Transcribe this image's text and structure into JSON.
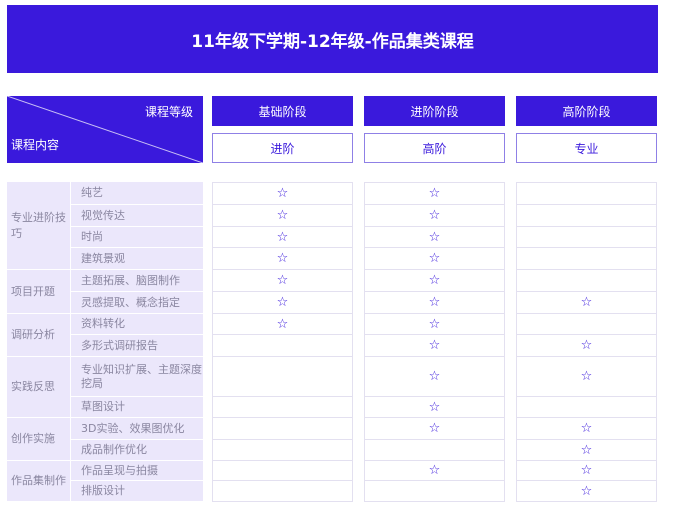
{
  "title": "11年级下学期-12年级-作品集类课程",
  "header": {
    "level_label": "课程等级",
    "content_label": "课程内容"
  },
  "levels": [
    {
      "stage": "基础阶段",
      "grade": "进阶"
    },
    {
      "stage": "进阶阶段",
      "grade": "高阶"
    },
    {
      "stage": "高阶阶段",
      "grade": "专业"
    }
  ],
  "star_icon": "star-outline-icon",
  "accent_color": "#3a19dc",
  "groups": [
    {
      "label": "专业进阶技巧",
      "rows": [
        0,
        3
      ]
    },
    {
      "label": "项目开题",
      "rows": [
        4,
        5
      ]
    },
    {
      "label": "调研分析",
      "rows": [
        6,
        7
      ]
    },
    {
      "label": "实践反思",
      "rows": [
        8,
        9
      ]
    },
    {
      "label": "创作实施",
      "rows": [
        10,
        11
      ]
    },
    {
      "label": "作品集制作",
      "rows": [
        12,
        13
      ]
    }
  ],
  "rows": [
    {
      "item": "纯艺",
      "stars": [
        true,
        true,
        false
      ]
    },
    {
      "item": "视觉传达",
      "stars": [
        true,
        true,
        false
      ]
    },
    {
      "item": "时尚",
      "stars": [
        true,
        true,
        false
      ]
    },
    {
      "item": "建筑景观",
      "stars": [
        true,
        true,
        false
      ]
    },
    {
      "item": "主题拓展、脑图制作",
      "stars": [
        true,
        true,
        false
      ]
    },
    {
      "item": "灵感提取、概念指定",
      "stars": [
        true,
        true,
        true
      ]
    },
    {
      "item": "资料转化",
      "stars": [
        true,
        true,
        false
      ]
    },
    {
      "item": "多形式调研报告",
      "stars": [
        false,
        true,
        true
      ]
    },
    {
      "item": "专业知识扩展、主题深度挖局",
      "stars": [
        false,
        true,
        true
      ]
    },
    {
      "item": "草图设计",
      "stars": [
        false,
        true,
        false
      ]
    },
    {
      "item": "3D实验、效果图优化",
      "stars": [
        false,
        true,
        true
      ]
    },
    {
      "item": "成品制作优化",
      "stars": [
        false,
        false,
        true
      ]
    },
    {
      "item": "作品呈现与拍摄",
      "stars": [
        false,
        true,
        true
      ]
    },
    {
      "item": "排版设计",
      "stars": [
        false,
        false,
        true
      ]
    }
  ]
}
